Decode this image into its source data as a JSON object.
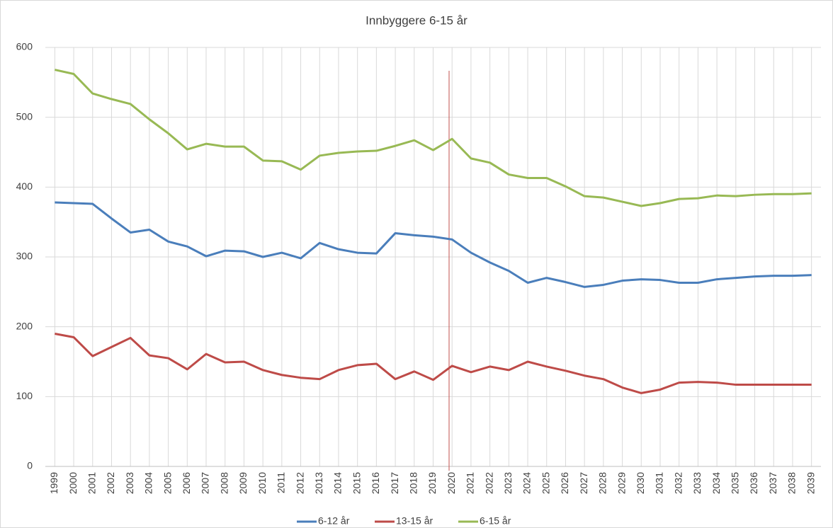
{
  "chart_data": {
    "type": "line",
    "title": "Innbyggere 6-15 år",
    "categories": [
      "1999",
      "2000",
      "2001",
      "2002",
      "2003",
      "2004",
      "2005",
      "2006",
      "2007",
      "2008",
      "2009",
      "2010",
      "2011",
      "2012",
      "2013",
      "2014",
      "2015",
      "2016",
      "2017",
      "2018",
      "2019",
      "2020",
      "2021",
      "2022",
      "2023",
      "2024",
      "2025",
      "2026",
      "2027",
      "2028",
      "2029",
      "2030",
      "2031",
      "2032",
      "2033",
      "2034",
      "2035",
      "2036",
      "2037",
      "2038",
      "2039"
    ],
    "series": [
      {
        "name": "6-12 år",
        "color": "#4a7ebb",
        "values": [
          378,
          377,
          376,
          355,
          335,
          339,
          322,
          315,
          301,
          309,
          308,
          300,
          306,
          298,
          320,
          311,
          306,
          305,
          334,
          331,
          329,
          325,
          306,
          292,
          280,
          263,
          270,
          264,
          257,
          260,
          266,
          268,
          267,
          263,
          263,
          268,
          270,
          272,
          273,
          273,
          274
        ]
      },
      {
        "name": "13-15 år",
        "color": "#be4b48",
        "values": [
          190,
          185,
          158,
          171,
          184,
          159,
          155,
          139,
          161,
          149,
          150,
          138,
          131,
          127,
          125,
          138,
          145,
          147,
          125,
          136,
          124,
          144,
          135,
          143,
          138,
          150,
          143,
          137,
          130,
          125,
          113,
          105,
          110,
          120,
          121,
          120,
          117,
          117,
          117,
          117,
          117
        ]
      },
      {
        "name": "6-15 år",
        "color": "#98b954",
        "values": [
          568,
          562,
          534,
          526,
          519,
          497,
          477,
          454,
          462,
          458,
          458,
          438,
          437,
          425,
          445,
          449,
          451,
          452,
          459,
          467,
          453,
          469,
          441,
          435,
          418,
          413,
          413,
          401,
          387,
          385,
          379,
          373,
          377,
          383,
          384,
          388,
          387,
          389,
          390,
          390,
          391
        ]
      }
    ],
    "ylim": [
      0,
      600
    ],
    "yticks": [
      0,
      100,
      200,
      300,
      400,
      500,
      600
    ],
    "grid": true,
    "legend": "bottom"
  }
}
